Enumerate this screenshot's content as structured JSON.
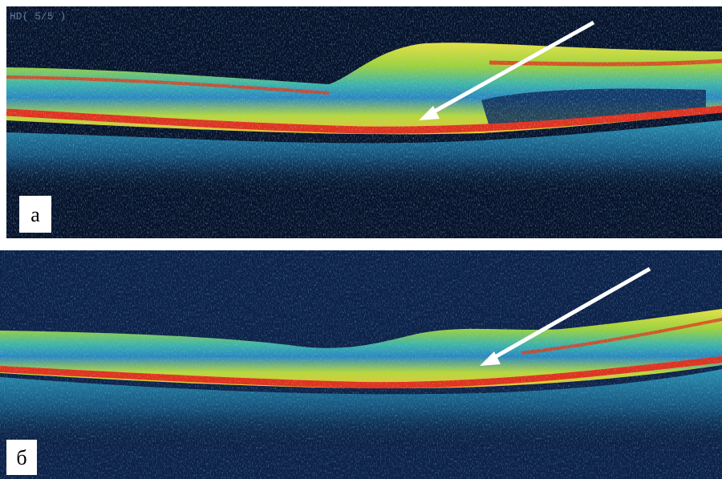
{
  "panels": [
    {
      "label": "а",
      "overlay": "HD( 5/5 )"
    },
    {
      "label": "б"
    }
  ]
}
